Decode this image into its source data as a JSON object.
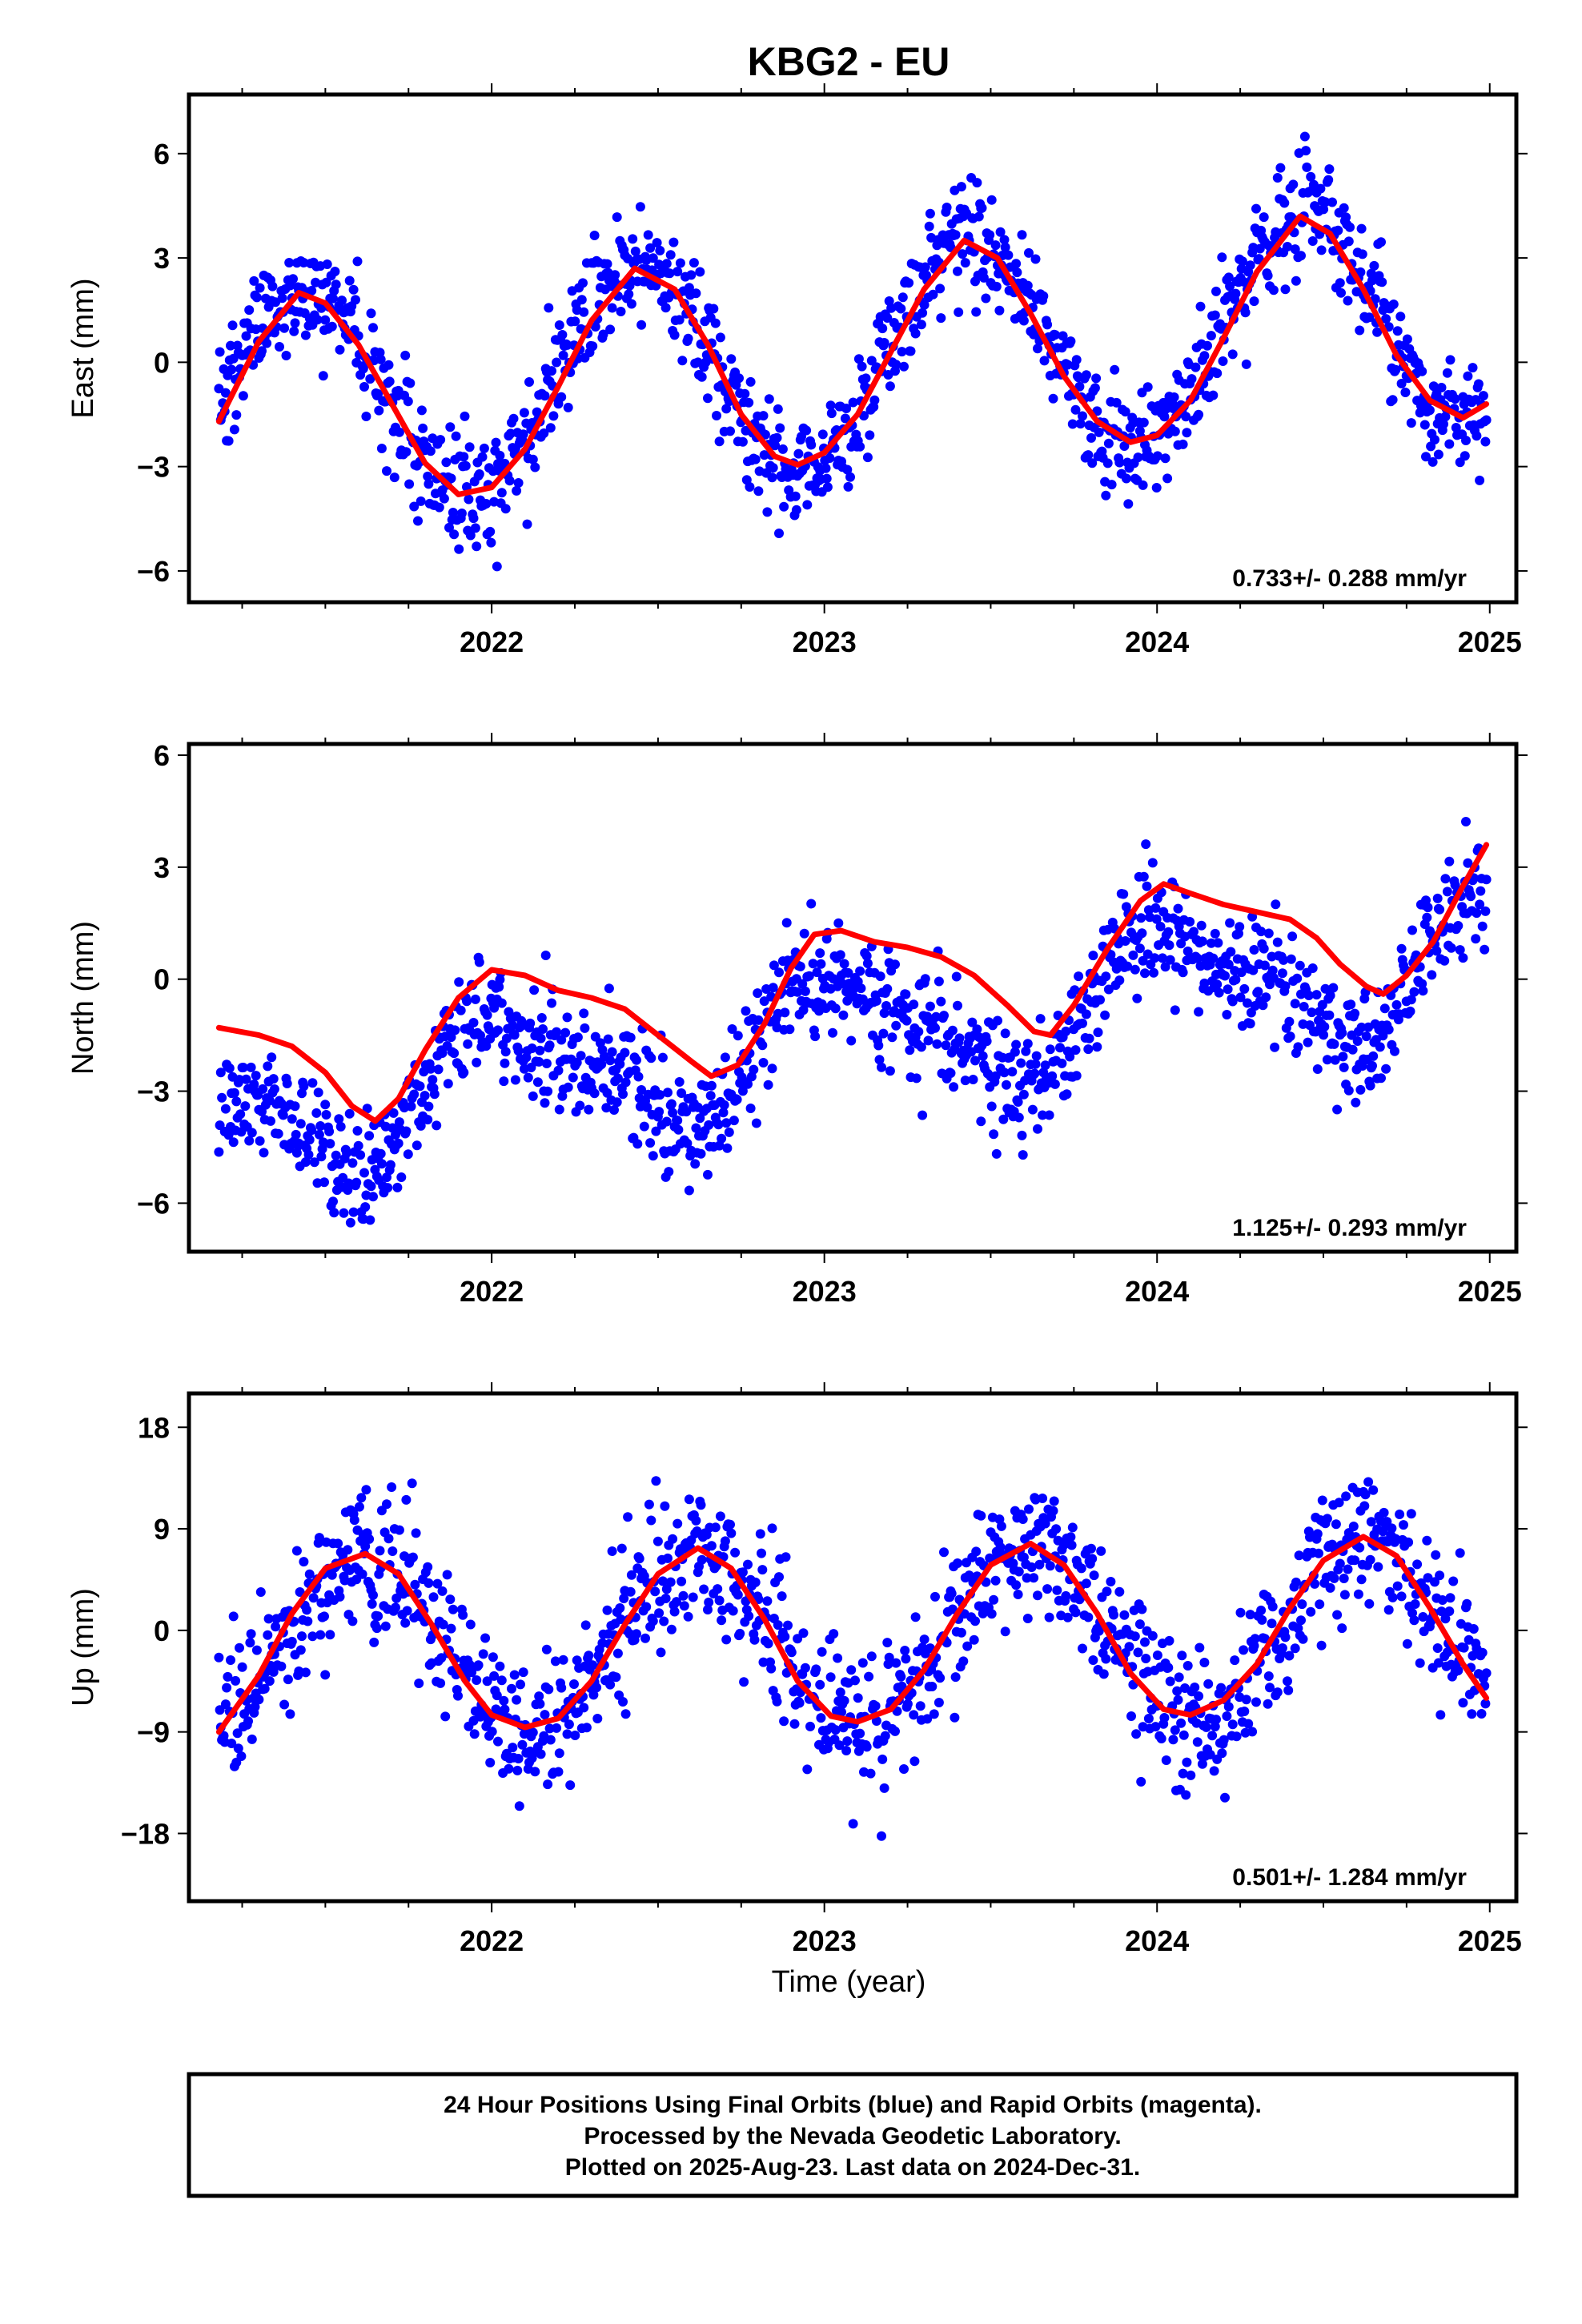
{
  "title": "KBG2 - EU",
  "colors": {
    "final_orbits": "#0000ff",
    "fit": "#ff0000",
    "frame": "#000000"
  },
  "chart_data": [
    {
      "type": "scatter",
      "id": "east",
      "ylabel": "East (mm)",
      "xlim": [
        2021.09,
        2025.08
      ],
      "ylim": [
        -6.9,
        7.7
      ],
      "yticks": [
        6,
        3,
        0,
        -3,
        -6
      ],
      "ytick_labels": [
        "6",
        "3",
        "0",
        "−3",
        "−6"
      ],
      "xticks": [
        2022,
        2023,
        2024,
        2025
      ],
      "xtick_labels": [
        "2022",
        "2023",
        "2024",
        "2025"
      ],
      "rate": "0.733+/- 0.288 mm/yr",
      "series": [
        {
          "kind": "points",
          "color": "#0000ff",
          "model": {
            "t0": 2021.18,
            "t1": 2024.99,
            "offset": 0.0,
            "trend": 0.733,
            "amp": 3.2,
            "phase_peak": 2021.43,
            "amp2": 0.0,
            "phase2": 0,
            "noise": 1.05
          }
        },
        {
          "kind": "fit",
          "color": "#ff0000",
          "points": [
            [
              2021.18,
              -1.7
            ],
            [
              2021.3,
              0.6
            ],
            [
              2021.42,
              2.0
            ],
            [
              2021.5,
              1.7
            ],
            [
              2021.6,
              0.5
            ],
            [
              2021.7,
              -1.2
            ],
            [
              2021.8,
              -2.9
            ],
            [
              2021.9,
              -3.8
            ],
            [
              2022.0,
              -3.6
            ],
            [
              2022.1,
              -2.5
            ],
            [
              2022.2,
              -0.7
            ],
            [
              2022.3,
              1.2
            ],
            [
              2022.43,
              2.7
            ],
            [
              2022.55,
              2.1
            ],
            [
              2022.65,
              0.5
            ],
            [
              2022.75,
              -1.5
            ],
            [
              2022.85,
              -2.7
            ],
            [
              2022.92,
              -2.95
            ],
            [
              2023.0,
              -2.6
            ],
            [
              2023.1,
              -1.5
            ],
            [
              2023.2,
              0.3
            ],
            [
              2023.3,
              2.1
            ],
            [
              2023.42,
              3.5
            ],
            [
              2023.52,
              3.0
            ],
            [
              2023.62,
              1.4
            ],
            [
              2023.72,
              -0.4
            ],
            [
              2023.82,
              -1.7
            ],
            [
              2023.92,
              -2.3
            ],
            [
              2024.0,
              -2.1
            ],
            [
              2024.1,
              -1.1
            ],
            [
              2024.2,
              0.7
            ],
            [
              2024.3,
              2.6
            ],
            [
              2024.43,
              4.2
            ],
            [
              2024.52,
              3.7
            ],
            [
              2024.62,
              2.1
            ],
            [
              2024.72,
              0.2
            ],
            [
              2024.82,
              -1.1
            ],
            [
              2024.92,
              -1.6
            ],
            [
              2024.99,
              -1.2
            ]
          ]
        }
      ]
    },
    {
      "type": "scatter",
      "id": "north",
      "ylabel": "North (mm)",
      "xlim": [
        2021.09,
        2025.08
      ],
      "ylim": [
        -7.3,
        6.3
      ],
      "yticks": [
        6,
        3,
        0,
        -3,
        -6
      ],
      "ytick_labels": [
        "6",
        "3",
        "0",
        "−3",
        "−6"
      ],
      "xticks": [
        2022,
        2023,
        2024,
        2025
      ],
      "xtick_labels": [
        "2022",
        "2023",
        "2024",
        "2025"
      ],
      "rate": "1.125+/- 0.293 mm/yr",
      "series": [
        {
          "kind": "points",
          "color": "#0000ff",
          "model": {
            "t0": 2021.18,
            "t1": 2024.99,
            "offset": -1.6,
            "trend": 1.125,
            "amp": 1.6,
            "phase_peak": 2022.05,
            "amp2": 0.6,
            "phase2": 2021.9,
            "noise": 0.95
          }
        },
        {
          "kind": "fit",
          "color": "#ff0000",
          "points": [
            [
              2021.18,
              -1.3
            ],
            [
              2021.3,
              -1.5
            ],
            [
              2021.4,
              -1.8
            ],
            [
              2021.5,
              -2.5
            ],
            [
              2021.58,
              -3.4
            ],
            [
              2021.65,
              -3.8
            ],
            [
              2021.72,
              -3.2
            ],
            [
              2021.8,
              -1.9
            ],
            [
              2021.9,
              -0.5
            ],
            [
              2022.0,
              0.25
            ],
            [
              2022.1,
              0.1
            ],
            [
              2022.2,
              -0.3
            ],
            [
              2022.3,
              -0.5
            ],
            [
              2022.4,
              -0.8
            ],
            [
              2022.5,
              -1.5
            ],
            [
              2022.6,
              -2.2
            ],
            [
              2022.66,
              -2.6
            ],
            [
              2022.74,
              -2.3
            ],
            [
              2022.82,
              -1.2
            ],
            [
              2022.9,
              0.3
            ],
            [
              2022.97,
              1.2
            ],
            [
              2023.05,
              1.3
            ],
            [
              2023.15,
              1.0
            ],
            [
              2023.25,
              0.85
            ],
            [
              2023.35,
              0.6
            ],
            [
              2023.45,
              0.1
            ],
            [
              2023.55,
              -0.7
            ],
            [
              2023.63,
              -1.4
            ],
            [
              2023.68,
              -1.5
            ],
            [
              2023.75,
              -0.7
            ],
            [
              2023.85,
              0.8
            ],
            [
              2023.95,
              2.1
            ],
            [
              2024.02,
              2.55
            ],
            [
              2024.1,
              2.3
            ],
            [
              2024.2,
              2.0
            ],
            [
              2024.3,
              1.8
            ],
            [
              2024.4,
              1.6
            ],
            [
              2024.48,
              1.1
            ],
            [
              2024.55,
              0.4
            ],
            [
              2024.63,
              -0.2
            ],
            [
              2024.68,
              -0.4
            ],
            [
              2024.75,
              0.1
            ],
            [
              2024.83,
              1.0
            ],
            [
              2024.92,
              2.5
            ],
            [
              2024.99,
              3.6
            ]
          ]
        }
      ]
    },
    {
      "type": "scatter",
      "id": "up",
      "ylabel": "Up (mm)",
      "xlim": [
        2021.09,
        2025.08
      ],
      "ylim": [
        -24.0,
        21.0
      ],
      "yticks": [
        18,
        9,
        0,
        -9,
        -18
      ],
      "ytick_labels": [
        "18",
        "9",
        "0",
        "−9",
        "−18"
      ],
      "xticks": [
        2022,
        2023,
        2024,
        2025
      ],
      "xtick_labels": [
        "2022",
        "2023",
        "2024",
        "2025"
      ],
      "xlabel": "Time (year)",
      "rate": "0.501+/- 1.284 mm/yr",
      "series": [
        {
          "kind": "points",
          "color": "#0000ff",
          "model": {
            "t0": 2021.18,
            "t1": 2024.99,
            "offset": -0.8,
            "trend": 0.501,
            "amp": 7.6,
            "phase_peak": 2021.62,
            "amp2": 0.0,
            "phase2": 0,
            "noise": 4.0
          }
        },
        {
          "kind": "fit",
          "color": "#ff0000",
          "points": [
            [
              2021.18,
              -9.0
            ],
            [
              2021.3,
              -4.0
            ],
            [
              2021.4,
              1.5
            ],
            [
              2021.5,
              5.5
            ],
            [
              2021.62,
              6.8
            ],
            [
              2021.72,
              5.0
            ],
            [
              2021.82,
              0.5
            ],
            [
              2021.92,
              -4.5
            ],
            [
              2022.0,
              -7.5
            ],
            [
              2022.1,
              -8.6
            ],
            [
              2022.2,
              -7.8
            ],
            [
              2022.3,
              -4.5
            ],
            [
              2022.4,
              0.5
            ],
            [
              2022.5,
              5.0
            ],
            [
              2022.62,
              7.3
            ],
            [
              2022.72,
              5.5
            ],
            [
              2022.82,
              1.0
            ],
            [
              2022.92,
              -4.5
            ],
            [
              2023.02,
              -7.6
            ],
            [
              2023.1,
              -8.1
            ],
            [
              2023.2,
              -7.0
            ],
            [
              2023.3,
              -3.5
            ],
            [
              2023.4,
              1.5
            ],
            [
              2023.5,
              5.8
            ],
            [
              2023.62,
              7.7
            ],
            [
              2023.72,
              5.8
            ],
            [
              2023.82,
              1.5
            ],
            [
              2023.92,
              -3.8
            ],
            [
              2024.02,
              -7.0
            ],
            [
              2024.1,
              -7.5
            ],
            [
              2024.2,
              -6.2
            ],
            [
              2024.3,
              -3.0
            ],
            [
              2024.4,
              2.0
            ],
            [
              2024.5,
              6.2
            ],
            [
              2024.62,
              8.3
            ],
            [
              2024.72,
              6.6
            ],
            [
              2024.82,
              2.0
            ],
            [
              2024.92,
              -3.0
            ],
            [
              2024.99,
              -6.0
            ]
          ]
        }
      ]
    }
  ],
  "footer": {
    "line1": "24 Hour Positions Using Final Orbits (blue) and Rapid Orbits (magenta).",
    "line2": "Processed by the Nevada Geodetic Laboratory.",
    "line3": "Plotted on 2025-Aug-23. Last data on 2024-Dec-31."
  }
}
